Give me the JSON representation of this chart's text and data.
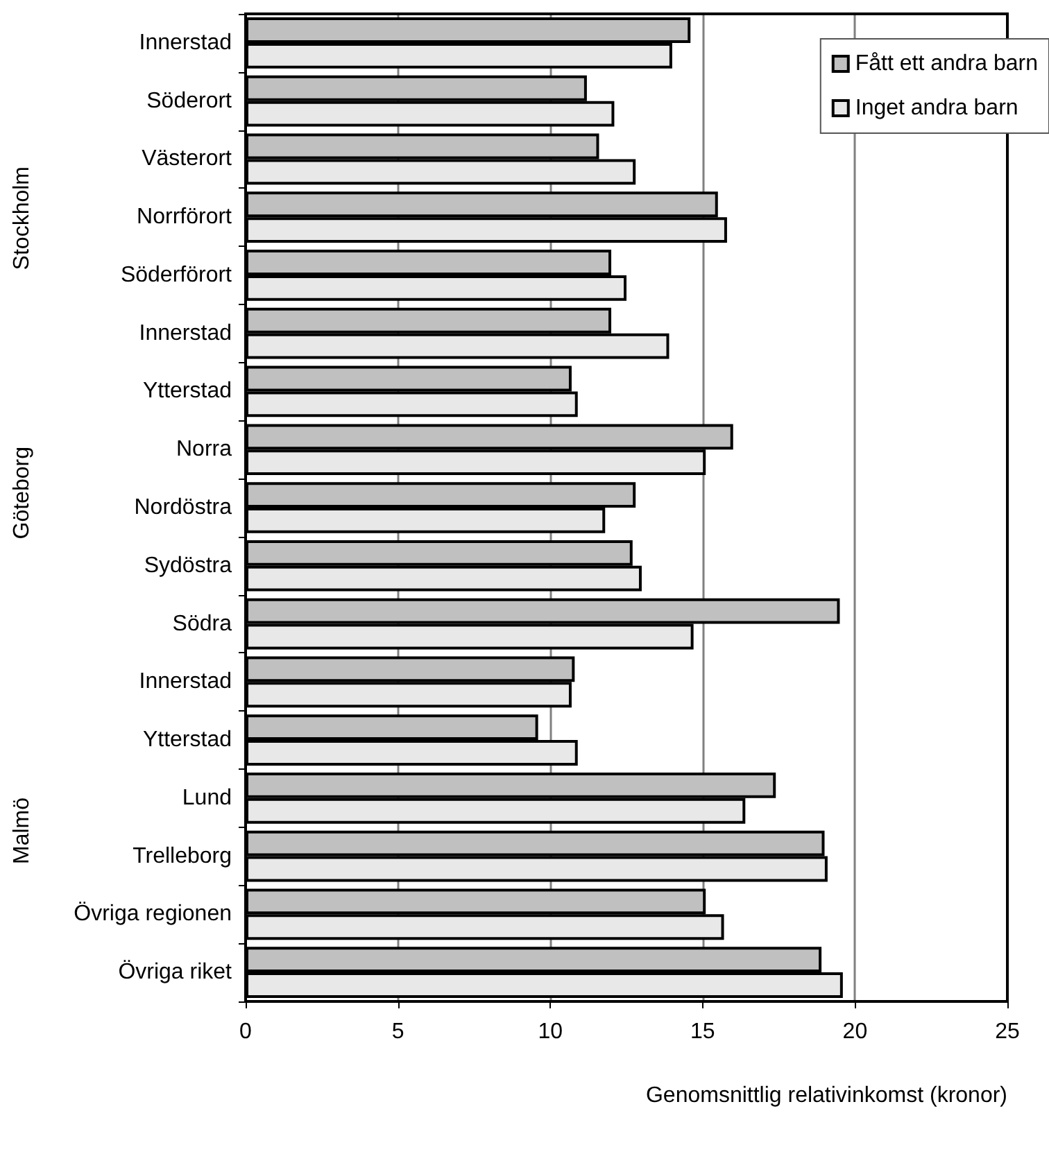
{
  "chart_data": {
    "type": "bar",
    "orientation": "horizontal",
    "xlabel": "Genomsnittlig relativinkomst (kronor)",
    "categories": [
      "Innerstad",
      "Söderort",
      "Västerort",
      "Norrförort",
      "Söderförort",
      "Innerstad",
      "Ytterstad",
      "Norra",
      "Nordöstra",
      "Sydöstra",
      "Södra",
      "Innerstad",
      "Ytterstad",
      "Lund",
      "Trelleborg",
      "Övriga regionen",
      "Övriga riket"
    ],
    "series": [
      {
        "name": "Fått ett andra barn",
        "color": "#c0c0c0",
        "values": [
          14.6,
          11.2,
          11.6,
          15.5,
          12.0,
          12.0,
          10.7,
          16.0,
          12.8,
          12.7,
          19.5,
          10.8,
          9.6,
          17.4,
          19.0,
          15.1,
          18.9
        ]
      },
      {
        "name": "Inget andra barn",
        "color": "#e8e8e8",
        "values": [
          14.0,
          12.1,
          12.8,
          15.8,
          12.5,
          13.9,
          10.9,
          15.1,
          11.8,
          13.0,
          14.7,
          10.7,
          10.9,
          16.4,
          19.1,
          15.7,
          19.6
        ]
      }
    ],
    "annotations": [
      "Stockholm",
      "Göteborg",
      "Malmö"
    ],
    "xlim": [
      0,
      25
    ],
    "xticks": [
      0,
      5,
      10,
      15,
      20,
      25
    ],
    "grid": "x",
    "legend": "top right"
  }
}
